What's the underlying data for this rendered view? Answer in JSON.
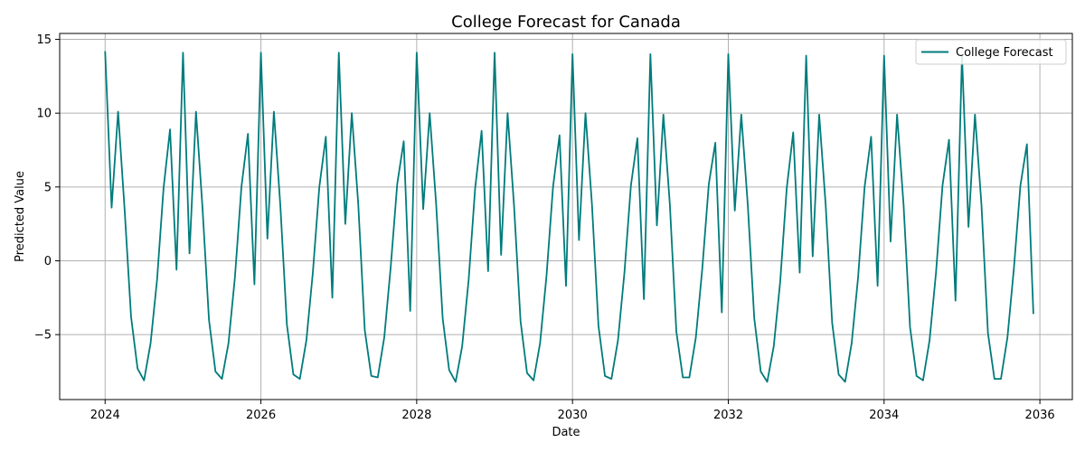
{
  "chart_data": {
    "type": "line",
    "title": "College Forecast for Canada",
    "xlabel": "Date",
    "ylabel": "Predicted Value",
    "x_axis_type": "date",
    "xlim": [
      "2023-06-01",
      "2036-06-01"
    ],
    "ylim": [
      -9.4,
      15.4
    ],
    "x_ticks": [
      "2024",
      "2026",
      "2028",
      "2030",
      "2032",
      "2034",
      "2036"
    ],
    "y_ticks": [
      -5,
      0,
      5,
      10,
      15
    ],
    "y_tick_labels": [
      "−5",
      "0",
      "5",
      "10",
      "15"
    ],
    "grid": true,
    "legend_position": "top-right",
    "line_color": "#007b7b",
    "series": [
      {
        "name": "College Forecast",
        "color": "#007b7b",
        "start": "2024-01",
        "frequency": "monthly",
        "values": [
          14.2,
          3.6,
          10.1,
          3.5,
          -3.8,
          -7.3,
          -8.1,
          -5.6,
          -1.3,
          4.9,
          8.9,
          -0.6,
          14.1,
          0.5,
          10.1,
          3.6,
          -4.0,
          -7.5,
          -8.0,
          -5.6,
          -1.1,
          5.0,
          8.6,
          -1.6,
          14.1,
          1.5,
          10.1,
          3.7,
          -4.3,
          -7.7,
          -8.0,
          -5.4,
          -0.8,
          5.0,
          8.4,
          -2.5,
          14.1,
          2.5,
          10.0,
          3.8,
          -4.7,
          -7.8,
          -7.9,
          -5.2,
          -0.4,
          5.2,
          8.1,
          -3.4,
          14.1,
          3.5,
          10.0,
          3.8,
          -3.9,
          -7.4,
          -8.2,
          -5.8,
          -1.3,
          4.9,
          8.8,
          -0.7,
          14.1,
          0.4,
          10.0,
          3.7,
          -4.1,
          -7.6,
          -8.1,
          -5.6,
          -1.0,
          5.0,
          8.5,
          -1.7,
          14.0,
          1.4,
          10.0,
          3.8,
          -4.4,
          -7.8,
          -8.0,
          -5.4,
          -0.8,
          5.1,
          8.3,
          -2.6,
          14.0,
          2.4,
          9.9,
          3.8,
          -4.8,
          -7.9,
          -7.9,
          -5.2,
          -0.5,
          5.2,
          8.0,
          -3.5,
          14.0,
          3.4,
          9.9,
          3.8,
          -3.9,
          -7.5,
          -8.2,
          -5.8,
          -1.4,
          4.9,
          8.7,
          -0.8,
          13.9,
          0.3,
          9.9,
          3.8,
          -4.2,
          -7.7,
          -8.2,
          -5.6,
          -1.1,
          5.0,
          8.4,
          -1.7,
          13.9,
          1.3,
          9.9,
          3.8,
          -4.5,
          -7.8,
          -8.1,
          -5.4,
          -0.8,
          5.1,
          8.2,
          -2.7,
          13.9,
          2.3,
          9.9,
          3.8,
          -4.9,
          -8.0,
          -8.0,
          -5.2,
          -0.5,
          5.1,
          7.9,
          -3.6
        ]
      }
    ]
  }
}
